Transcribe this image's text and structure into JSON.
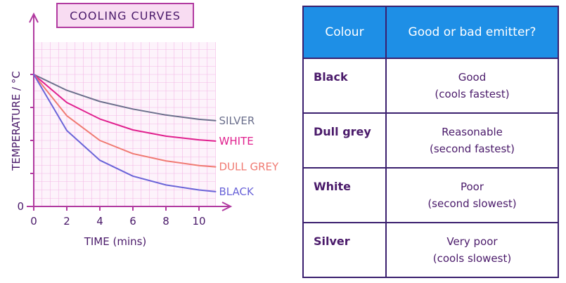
{
  "chart_data": {
    "type": "line",
    "title": "COOLING CURVES",
    "xlabel": "TIME (mins)",
    "ylabel": "TEMPERATURE / °C",
    "x_ticks": [
      0,
      2,
      4,
      6,
      8,
      10
    ],
    "y_ticks": [
      "0"
    ],
    "xlim": [
      0,
      11
    ],
    "grid": true,
    "series": [
      {
        "name": "SILVER",
        "color": "#6b6f8c",
        "x": [
          0,
          2,
          4,
          6,
          8,
          10,
          11
        ],
        "y": [
          4.0,
          3.52,
          3.18,
          2.95,
          2.77,
          2.64,
          2.6
        ]
      },
      {
        "name": "WHITE",
        "color": "#e0208e",
        "x": [
          0,
          2,
          4,
          6,
          8,
          10,
          11
        ],
        "y": [
          4.0,
          3.15,
          2.65,
          2.32,
          2.13,
          2.02,
          1.98
        ]
      },
      {
        "name": "DULL GREY",
        "color": "#f07a72",
        "x": [
          0,
          2,
          4,
          6,
          8,
          10,
          11
        ],
        "y": [
          4.0,
          2.75,
          2.0,
          1.6,
          1.38,
          1.24,
          1.2
        ]
      },
      {
        "name": "BLACK",
        "color": "#6a64d8",
        "x": [
          0,
          2,
          4,
          6,
          8,
          10,
          11
        ],
        "y": [
          4.0,
          2.3,
          1.4,
          0.92,
          0.65,
          0.5,
          0.45
        ]
      }
    ]
  },
  "table": {
    "headers": [
      "Colour",
      "Good or bad emitter?"
    ],
    "rows": [
      {
        "colour": "Black",
        "line1": "Good",
        "line2": "(cools fastest)"
      },
      {
        "colour": "Dull grey",
        "line1": "Reasonable",
        "line2": "(second fastest)"
      },
      {
        "colour": "White",
        "line1": "Poor",
        "line2": "(second slowest)"
      },
      {
        "colour": "Silver",
        "line1": "Very poor",
        "line2": "(cools slowest)"
      }
    ]
  }
}
